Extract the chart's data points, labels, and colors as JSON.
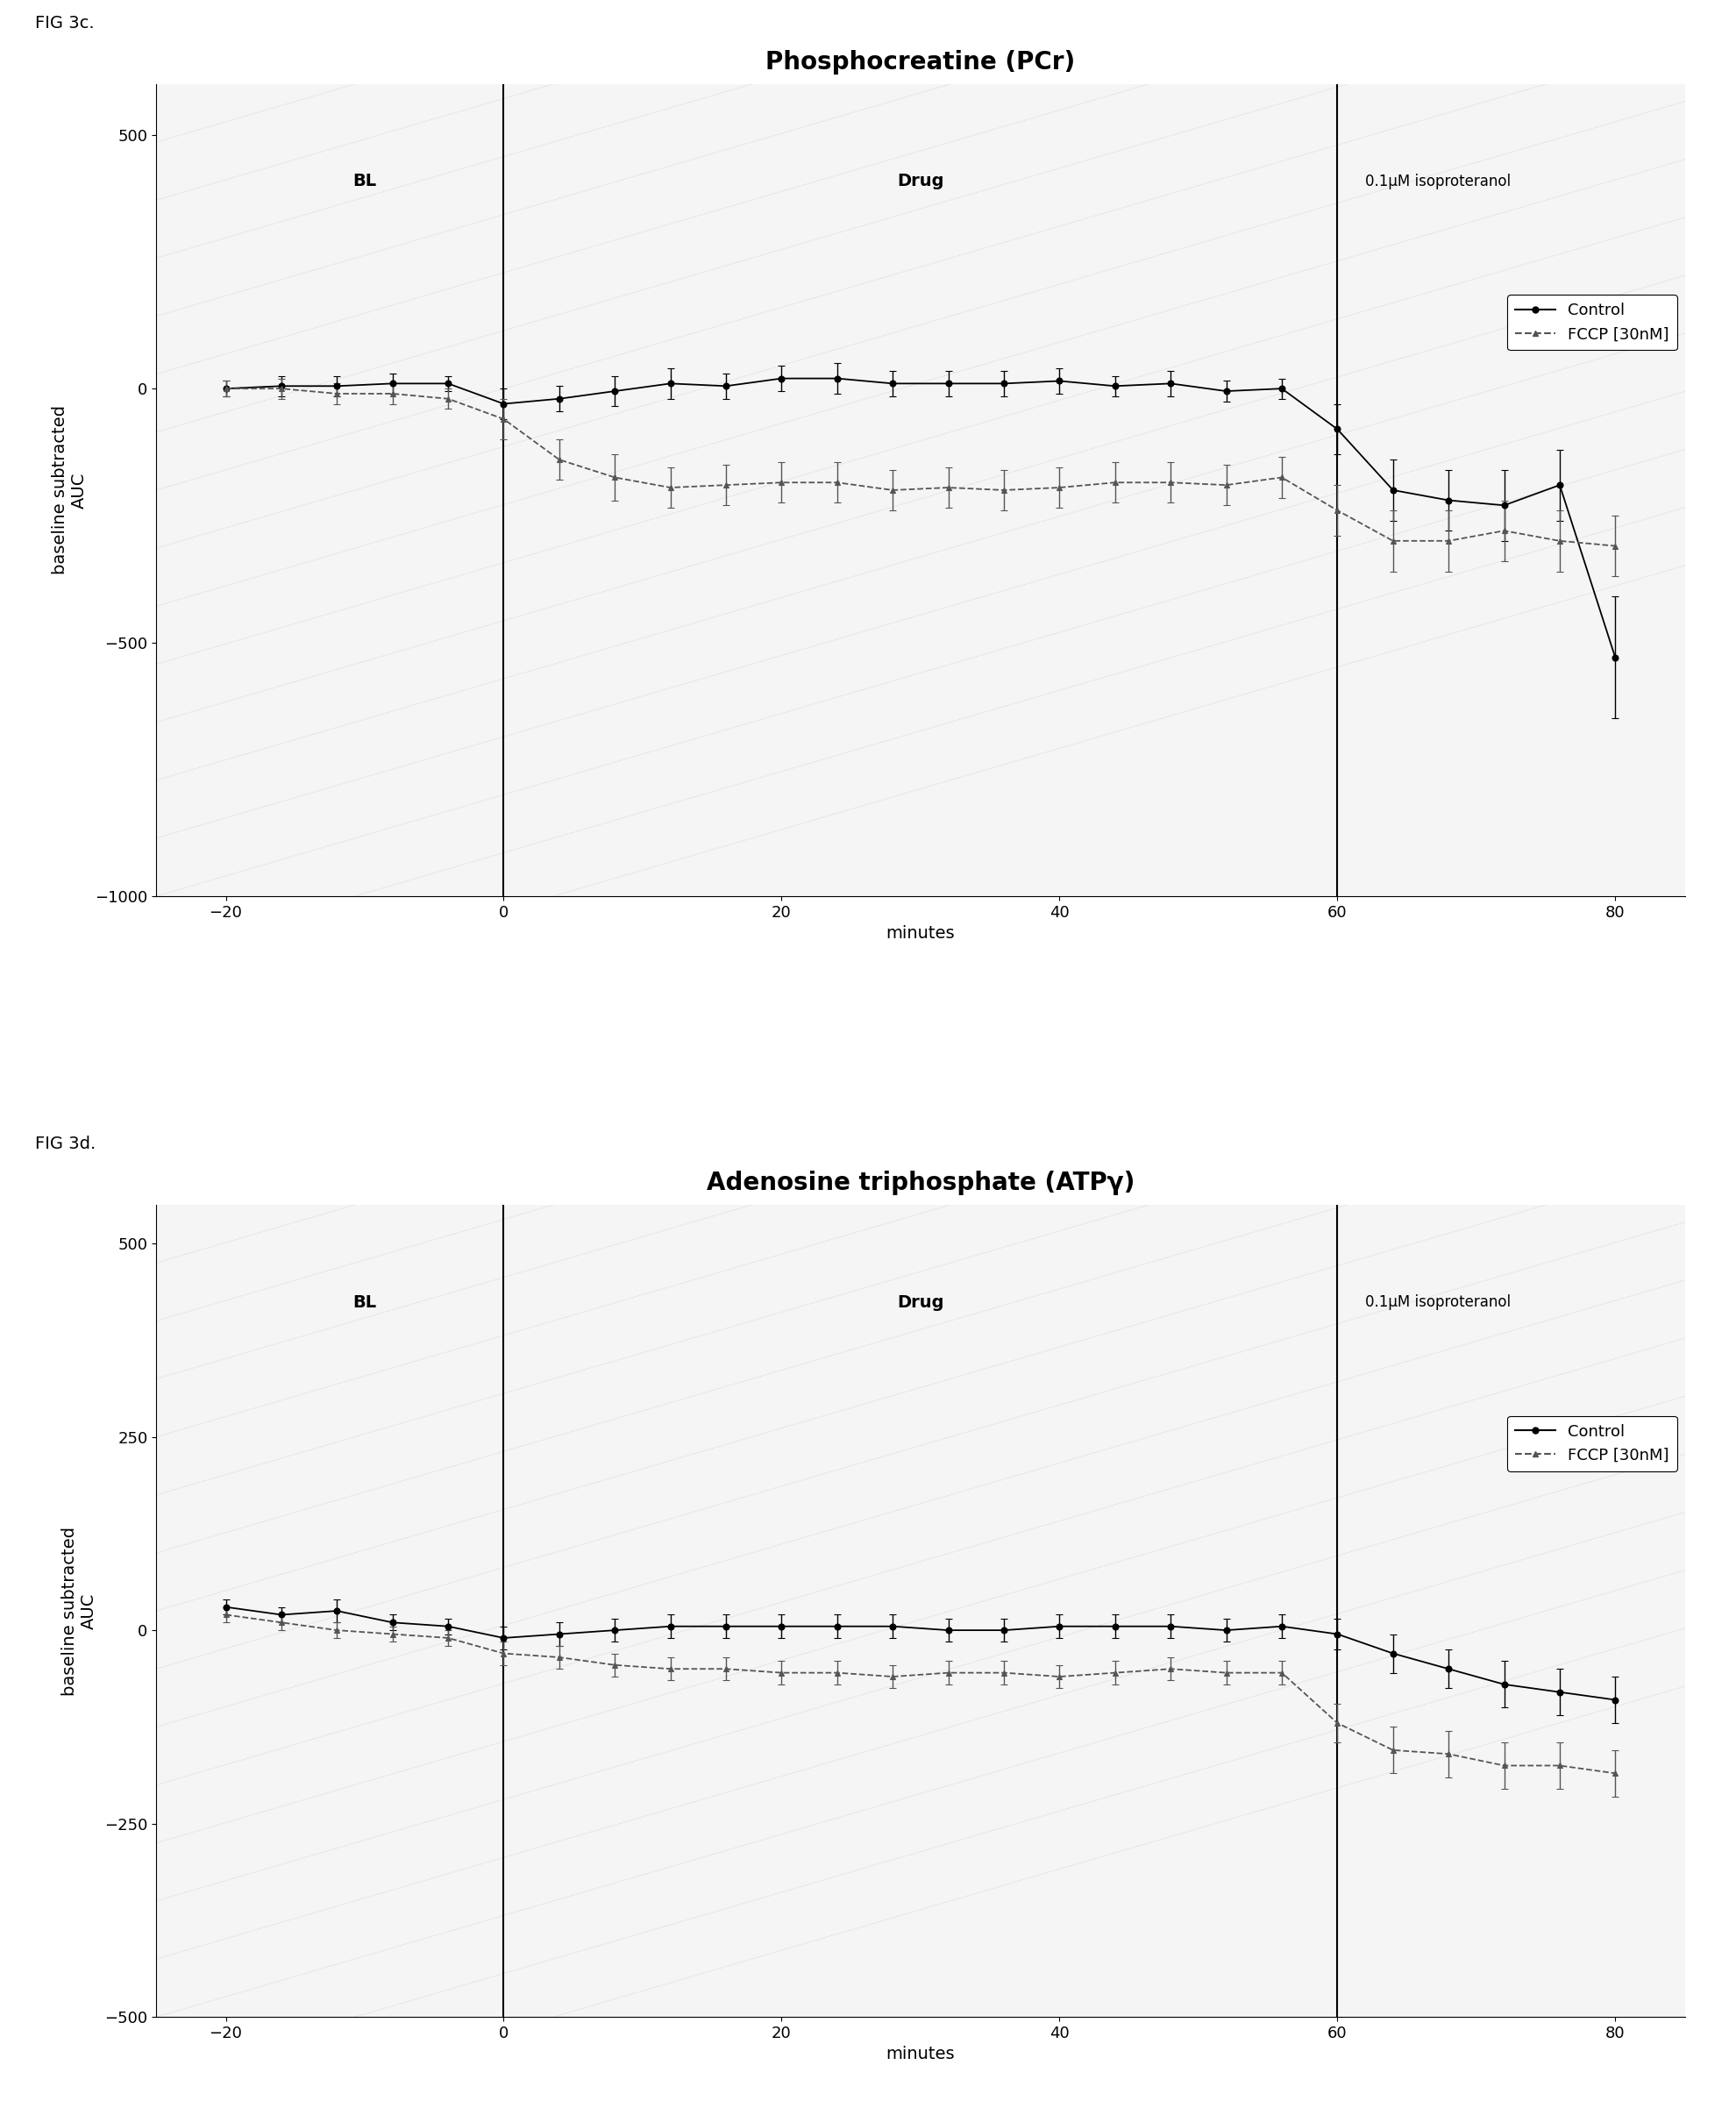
{
  "fig3c_title": "Phosphocreatine (PCr)",
  "fig3d_title": "Adenosine triphosphate (ATPγ)",
  "fig_label_3c": "FIG 3c.",
  "fig_label_3d": "FIG 3d.",
  "ylabel": "baseline subtracted\nAUC",
  "xlabel": "minutes",
  "bl_label": "BL",
  "drug_label": "Drug",
  "iso_label": "0.1μM isoproteranol",
  "legend_control": "Control",
  "legend_fccp": "FCCP [30nM]",
  "vline1": 0,
  "vline2": 60,
  "pcr_control_x": [
    -20,
    -16,
    -12,
    -8,
    -4,
    0,
    4,
    8,
    12,
    16,
    20,
    24,
    28,
    32,
    36,
    40,
    44,
    48,
    52,
    56,
    60,
    64,
    68,
    72,
    76,
    80
  ],
  "pcr_control_y": [
    0,
    5,
    5,
    10,
    10,
    -30,
    -20,
    -5,
    10,
    5,
    20,
    20,
    10,
    10,
    10,
    15,
    5,
    10,
    -5,
    0,
    -80,
    -200,
    -220,
    -230,
    -190,
    -530
  ],
  "pcr_control_err": [
    15,
    20,
    20,
    20,
    15,
    30,
    25,
    30,
    30,
    25,
    25,
    30,
    25,
    25,
    25,
    25,
    20,
    25,
    20,
    20,
    50,
    60,
    60,
    70,
    70,
    120
  ],
  "pcr_fccp_x": [
    -20,
    -16,
    -12,
    -8,
    -4,
    0,
    4,
    8,
    12,
    16,
    20,
    24,
    28,
    32,
    36,
    40,
    44,
    48,
    52,
    56,
    60,
    64,
    68,
    72,
    76,
    80
  ],
  "pcr_fccp_y": [
    0,
    0,
    -10,
    -10,
    -20,
    -60,
    -140,
    -175,
    -195,
    -190,
    -185,
    -185,
    -200,
    -195,
    -200,
    -195,
    -185,
    -185,
    -190,
    -175,
    -240,
    -300,
    -300,
    -280,
    -300,
    -310
  ],
  "pcr_fccp_err": [
    15,
    20,
    20,
    20,
    20,
    40,
    40,
    45,
    40,
    40,
    40,
    40,
    40,
    40,
    40,
    40,
    40,
    40,
    40,
    40,
    50,
    60,
    60,
    60,
    60,
    60
  ],
  "pcr_ylim": [
    -1000,
    600
  ],
  "pcr_yticks": [
    -1000,
    -500,
    0,
    500
  ],
  "atp_control_x": [
    -20,
    -16,
    -12,
    -8,
    -4,
    0,
    4,
    8,
    12,
    16,
    20,
    24,
    28,
    32,
    36,
    40,
    44,
    48,
    52,
    56,
    60,
    64,
    68,
    72,
    76,
    80
  ],
  "atp_control_y": [
    30,
    20,
    25,
    10,
    5,
    -10,
    -5,
    0,
    5,
    5,
    5,
    5,
    5,
    0,
    0,
    5,
    5,
    5,
    0,
    5,
    -5,
    -30,
    -50,
    -70,
    -80,
    -90
  ],
  "atp_control_err": [
    10,
    10,
    15,
    10,
    10,
    15,
    15,
    15,
    15,
    15,
    15,
    15,
    15,
    15,
    15,
    15,
    15,
    15,
    15,
    15,
    20,
    25,
    25,
    30,
    30,
    30
  ],
  "atp_fccp_x": [
    -20,
    -16,
    -12,
    -8,
    -4,
    0,
    4,
    8,
    12,
    16,
    20,
    24,
    28,
    32,
    36,
    40,
    44,
    48,
    52,
    56,
    60,
    64,
    68,
    72,
    76,
    80
  ],
  "atp_fccp_y": [
    20,
    10,
    0,
    -5,
    -10,
    -30,
    -35,
    -45,
    -50,
    -50,
    -55,
    -55,
    -60,
    -55,
    -55,
    -60,
    -55,
    -50,
    -55,
    -55,
    -120,
    -155,
    -160,
    -175,
    -175,
    -185
  ],
  "atp_fccp_err": [
    10,
    10,
    10,
    10,
    10,
    15,
    15,
    15,
    15,
    15,
    15,
    15,
    15,
    15,
    15,
    15,
    15,
    15,
    15,
    15,
    25,
    30,
    30,
    30,
    30,
    30
  ],
  "atp_ylim": [
    -500,
    550
  ],
  "atp_yticks": [
    -500,
    -250,
    0,
    250,
    500
  ],
  "xlim": [
    -25,
    85
  ],
  "xticks": [
    -20,
    0,
    20,
    40,
    60,
    80
  ],
  "background_color": "#ffffff",
  "line_color_control": "#000000",
  "line_color_fccp": "#555555",
  "title_fontsize": 20,
  "label_fontsize": 14,
  "tick_fontsize": 13,
  "legend_fontsize": 13,
  "fig_label_fontsize": 14,
  "annot_fontsize": 14
}
